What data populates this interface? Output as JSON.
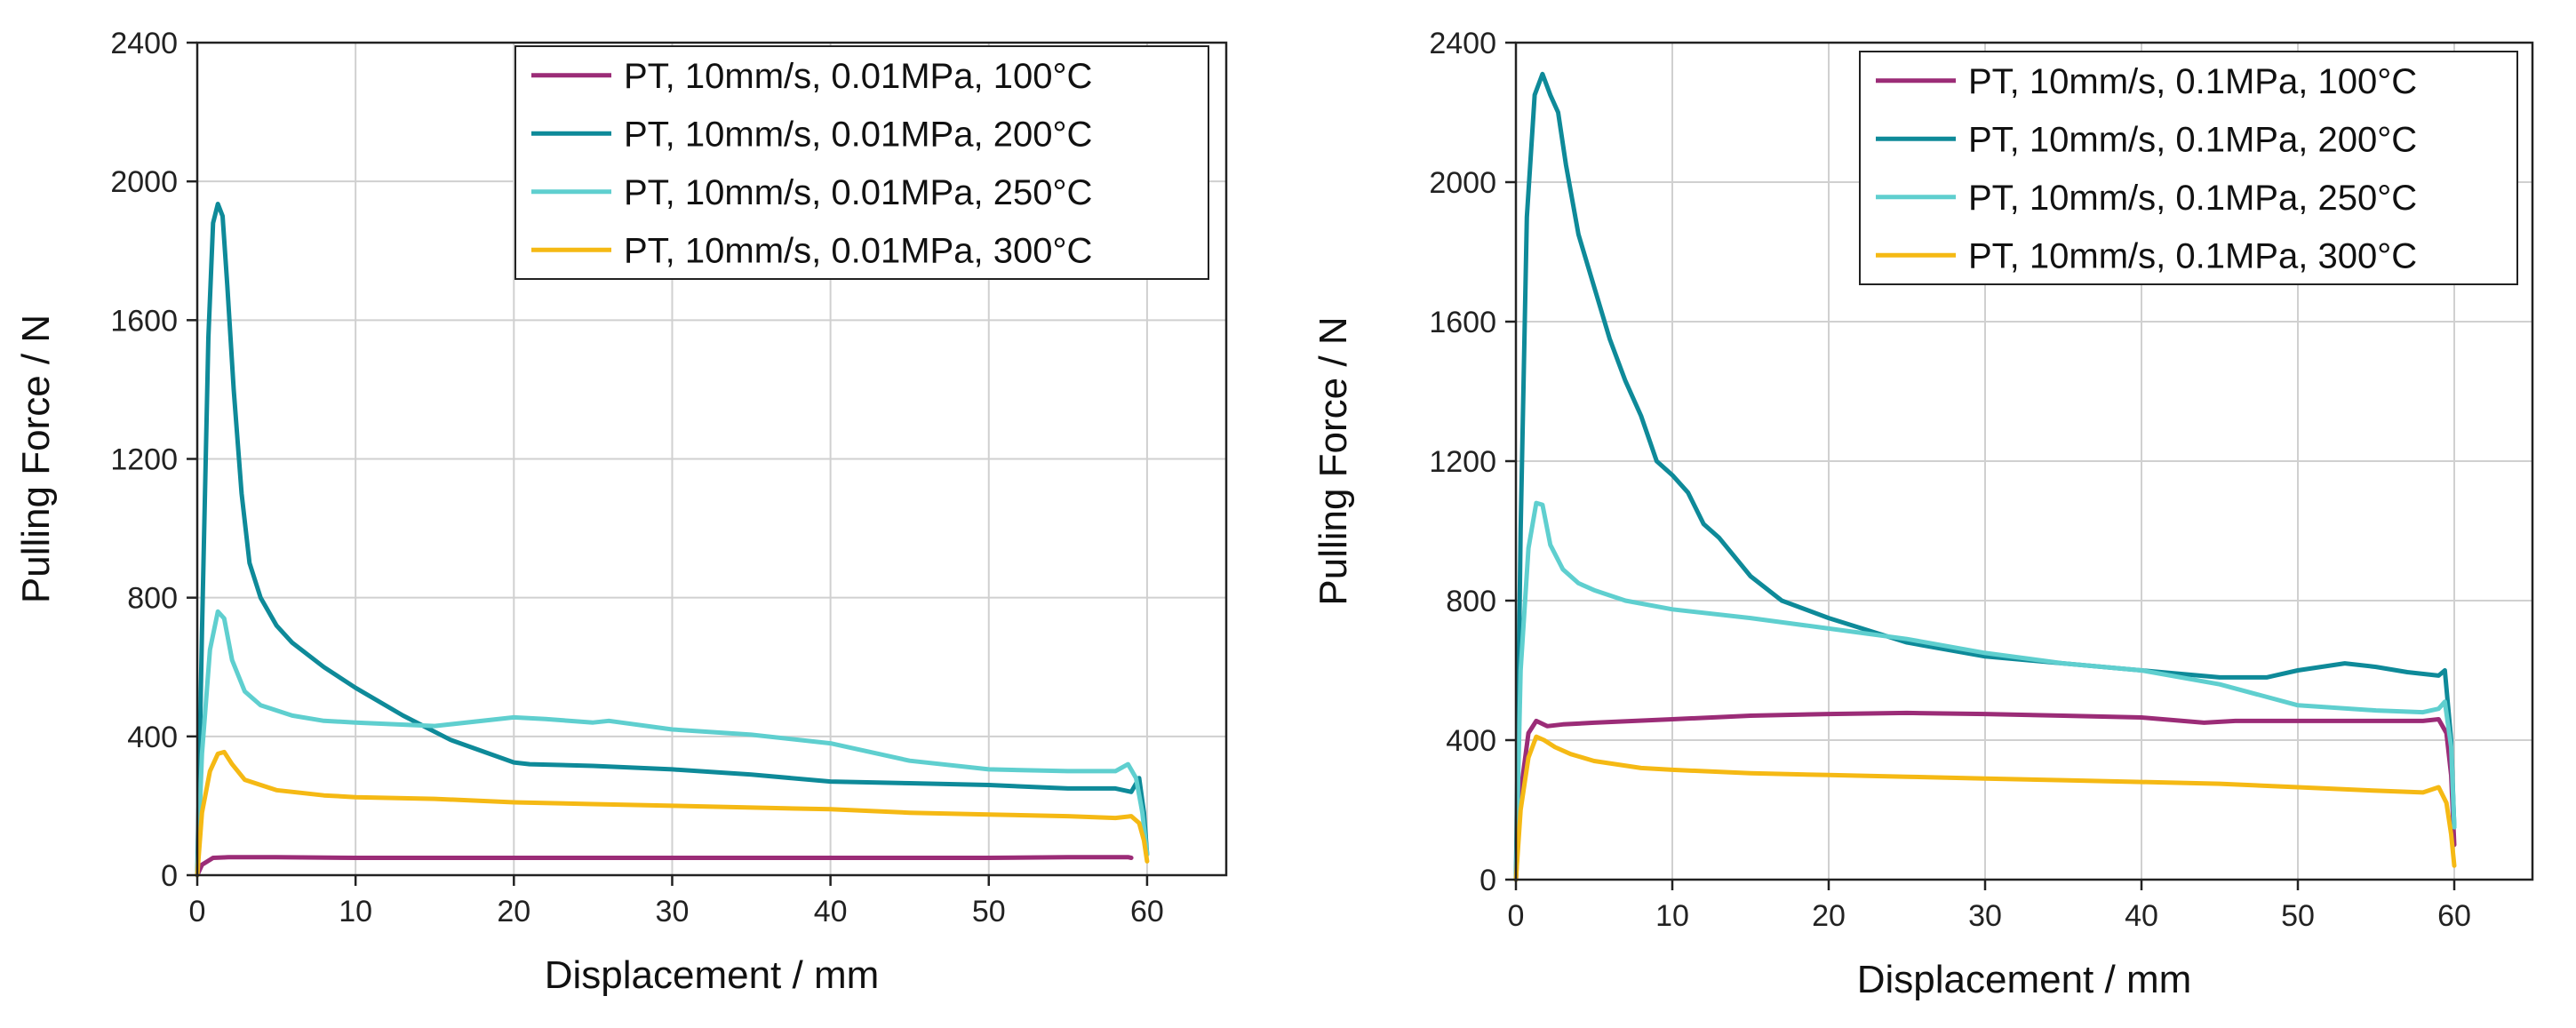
{
  "chart_data": [
    {
      "type": "line",
      "title": "",
      "xlabel": "Displacement / mm",
      "ylabel": "Pulling Force / N",
      "xlim": [
        0,
        65
      ],
      "ylim": [
        0,
        2400
      ],
      "xticks": [
        "0",
        "10",
        "20",
        "30",
        "40",
        "50",
        "60"
      ],
      "yticks": [
        "0",
        "400",
        "800",
        "1200",
        "1600",
        "2000",
        "2400"
      ],
      "grid": true,
      "legend_position": "top-right",
      "series": [
        {
          "name": "PT, 10mm/s, 0.01MPa, 100°C",
          "color": "#9b2c77",
          "x": [
            0,
            0.3,
            1,
            2,
            5,
            10,
            20,
            30,
            40,
            50,
            55,
            58.8,
            59
          ],
          "y": [
            0,
            30,
            50,
            52,
            52,
            50,
            50,
            50,
            50,
            50,
            52,
            52,
            50
          ]
        },
        {
          "name": "PT, 10mm/s, 0.01MPa, 200°C",
          "color": "#0e8a99",
          "x": [
            0,
            0.3,
            0.7,
            1.0,
            1.3,
            1.6,
            1.9,
            2.3,
            2.8,
            3.3,
            4,
            5,
            6,
            8,
            10,
            13,
            16,
            20,
            21,
            25,
            30,
            35,
            40,
            45,
            50,
            55,
            58,
            59,
            59.5,
            59.8,
            60
          ],
          "y": [
            0,
            700,
            1550,
            1880,
            1935,
            1900,
            1700,
            1400,
            1100,
            900,
            800,
            720,
            670,
            600,
            540,
            460,
            390,
            325,
            320,
            315,
            305,
            290,
            270,
            265,
            260,
            250,
            250,
            240,
            280,
            180,
            60
          ]
        },
        {
          "name": "PT, 10mm/s, 0.01MPa, 250°C",
          "color": "#5fcfcf",
          "x": [
            0,
            0.3,
            0.8,
            1.3,
            1.7,
            2.2,
            3,
            4,
            6,
            8,
            10,
            15,
            20,
            22,
            25,
            26,
            30,
            35,
            40,
            45,
            50,
            55,
            58,
            58.8,
            59.3,
            59.7,
            60
          ],
          "y": [
            0,
            350,
            650,
            760,
            740,
            620,
            530,
            490,
            460,
            445,
            440,
            430,
            455,
            450,
            440,
            445,
            420,
            405,
            380,
            330,
            305,
            300,
            300,
            320,
            280,
            180,
            60
          ]
        },
        {
          "name": "PT, 10mm/s, 0.01MPa, 300°C",
          "color": "#f5b914",
          "x": [
            0,
            0.3,
            0.8,
            1.3,
            1.7,
            2.2,
            3,
            5,
            8,
            10,
            15,
            20,
            25,
            30,
            35,
            40,
            45,
            50,
            55,
            58,
            59,
            59.5,
            59.8,
            60
          ],
          "y": [
            0,
            180,
            300,
            350,
            355,
            320,
            275,
            245,
            230,
            225,
            220,
            210,
            205,
            200,
            195,
            190,
            180,
            175,
            170,
            165,
            170,
            150,
            100,
            40
          ]
        }
      ]
    },
    {
      "type": "line",
      "title": "",
      "xlabel": "Displacement / mm",
      "ylabel": "Pulling Force / N",
      "xlim": [
        0,
        65
      ],
      "ylim": [
        0,
        2400
      ],
      "xticks": [
        "0",
        "10",
        "20",
        "30",
        "40",
        "50",
        "60"
      ],
      "yticks": [
        "0",
        "400",
        "800",
        "1200",
        "1600",
        "2000",
        "2400"
      ],
      "grid": true,
      "legend_position": "top-right",
      "series": [
        {
          "name": "PT, 10mm/s, 0.1MPa, 100°C",
          "color": "#9b2c77",
          "x": [
            0,
            0.3,
            0.8,
            1.3,
            2,
            3,
            5,
            10,
            15,
            20,
            25,
            30,
            35,
            40,
            44,
            46,
            50,
            55,
            58,
            59,
            59.5,
            59.8,
            60
          ],
          "y": [
            0,
            250,
            420,
            455,
            440,
            445,
            450,
            460,
            470,
            475,
            478,
            475,
            470,
            465,
            450,
            455,
            455,
            455,
            455,
            460,
            420,
            300,
            100
          ]
        },
        {
          "name": "PT, 10mm/s, 0.1MPa, 200°C",
          "color": "#0e8a99",
          "x": [
            0,
            0.3,
            0.7,
            1.2,
            1.7,
            2.2,
            2.7,
            3.2,
            4,
            5,
            6,
            7,
            8,
            9,
            10,
            11,
            12,
            13,
            15,
            17,
            20,
            25,
            30,
            35,
            40,
            45,
            48,
            50,
            53,
            55,
            57,
            59,
            59.4,
            59.8,
            60
          ],
          "y": [
            0,
            1000,
            1900,
            2250,
            2310,
            2250,
            2200,
            2050,
            1850,
            1700,
            1550,
            1430,
            1330,
            1200,
            1160,
            1110,
            1020,
            980,
            870,
            800,
            750,
            680,
            640,
            620,
            600,
            580,
            580,
            600,
            620,
            610,
            595,
            585,
            600,
            400,
            150
          ]
        },
        {
          "name": "PT, 10mm/s, 0.1MPa, 250°C",
          "color": "#5fcfcf",
          "x": [
            0,
            0.3,
            0.8,
            1.3,
            1.7,
            2.2,
            3,
            4,
            5,
            7,
            10,
            15,
            20,
            25,
            30,
            35,
            40,
            45,
            50,
            55,
            58,
            59,
            59.4,
            59.8,
            60
          ],
          "y": [
            0,
            600,
            950,
            1080,
            1075,
            960,
            890,
            850,
            830,
            800,
            775,
            750,
            720,
            690,
            650,
            620,
            600,
            560,
            500,
            485,
            480,
            490,
            510,
            380,
            150
          ]
        },
        {
          "name": "PT, 10mm/s, 0.1MPa, 300°C",
          "color": "#f5b914",
          "x": [
            0,
            0.3,
            0.8,
            1.3,
            1.8,
            2.5,
            3.5,
            5,
            8,
            10,
            15,
            20,
            25,
            30,
            35,
            40,
            45,
            50,
            55,
            58,
            59,
            59.5,
            59.8,
            60
          ],
          "y": [
            0,
            200,
            350,
            410,
            400,
            380,
            360,
            340,
            320,
            315,
            305,
            300,
            295,
            290,
            285,
            280,
            275,
            265,
            255,
            250,
            265,
            220,
            130,
            40
          ]
        }
      ]
    }
  ]
}
